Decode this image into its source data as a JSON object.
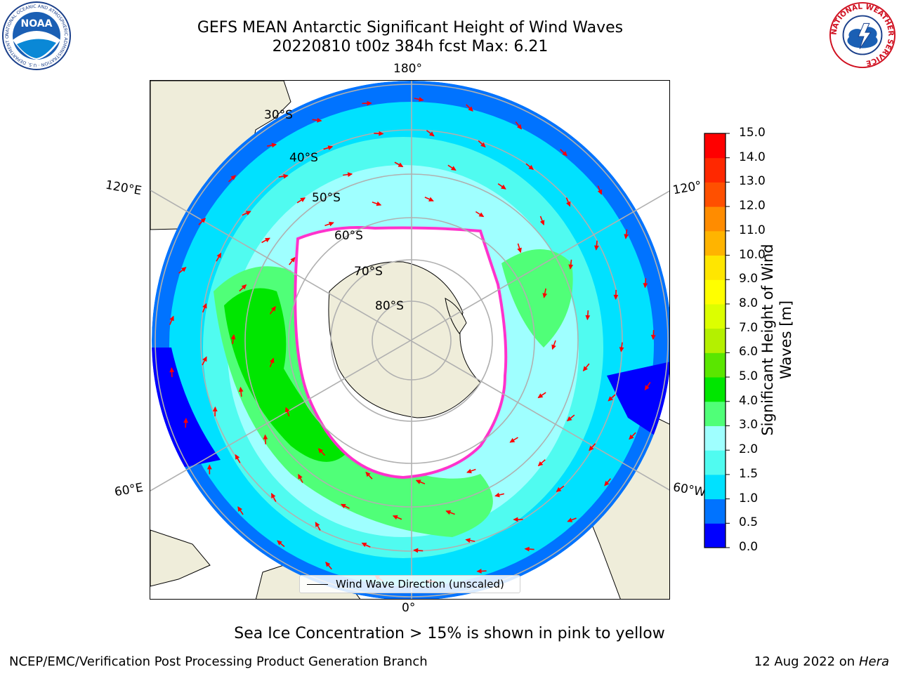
{
  "header": {
    "title_line1": "GEFS MEAN Antarctic Significant Height of Wind Waves",
    "title_line2": "20220810 t00z 384h fcst   Max: 6.21"
  },
  "logos": {
    "noaa_text": "NOAA",
    "noaa_ring": "NATIONAL OCEANIC AND ATMOSPHERIC ADMINISTRATION · U.S. DEPARTMENT OF COMMERCE",
    "nws_ring": "NATIONAL WEATHER SERVICE"
  },
  "map": {
    "longitude_labels": {
      "top": "180°",
      "bottom": "0°",
      "upper_left": "120°E",
      "lower_left": "60°E",
      "upper_right": "120°",
      "lower_right": "60°W"
    },
    "latitude_labels": [
      "30°S",
      "40°S",
      "50°S",
      "60°S",
      "70°S",
      "80°S"
    ],
    "colors": {
      "land": "#efedda",
      "gridline": "#b0b0b0",
      "arrow": "#ff0000",
      "ice_edge": "#ff33cc"
    }
  },
  "legend": {
    "label": "Wind Wave Direction (unscaled)"
  },
  "colorbar": {
    "label": "Significant Height of Wind Waves [m]",
    "ticks": [
      "0.0",
      "0.5",
      "1.0",
      "1.5",
      "2.0",
      "3.0",
      "4.0",
      "5.0",
      "6.0",
      "7.0",
      "8.0",
      "9.0",
      "10.0",
      "11.0",
      "12.0",
      "13.0",
      "14.0",
      "15.0"
    ],
    "colors": [
      "#0000ff",
      "#0073ff",
      "#00e1ff",
      "#50fbf0",
      "#9fffff",
      "#50ff78",
      "#00e600",
      "#5ae600",
      "#b4f000",
      "#dcff00",
      "#ffff00",
      "#ffe600",
      "#ffb400",
      "#ff8c00",
      "#ff5000",
      "#ff2800",
      "#ff0000"
    ]
  },
  "footer": {
    "note": "Sea Ice Concentration > 15% is shown in pink to yellow",
    "left": "NCEP/EMC/Verification Post Processing Product Generation Branch",
    "right_prefix": "12 Aug 2022 on",
    "right_host": "Hera"
  }
}
